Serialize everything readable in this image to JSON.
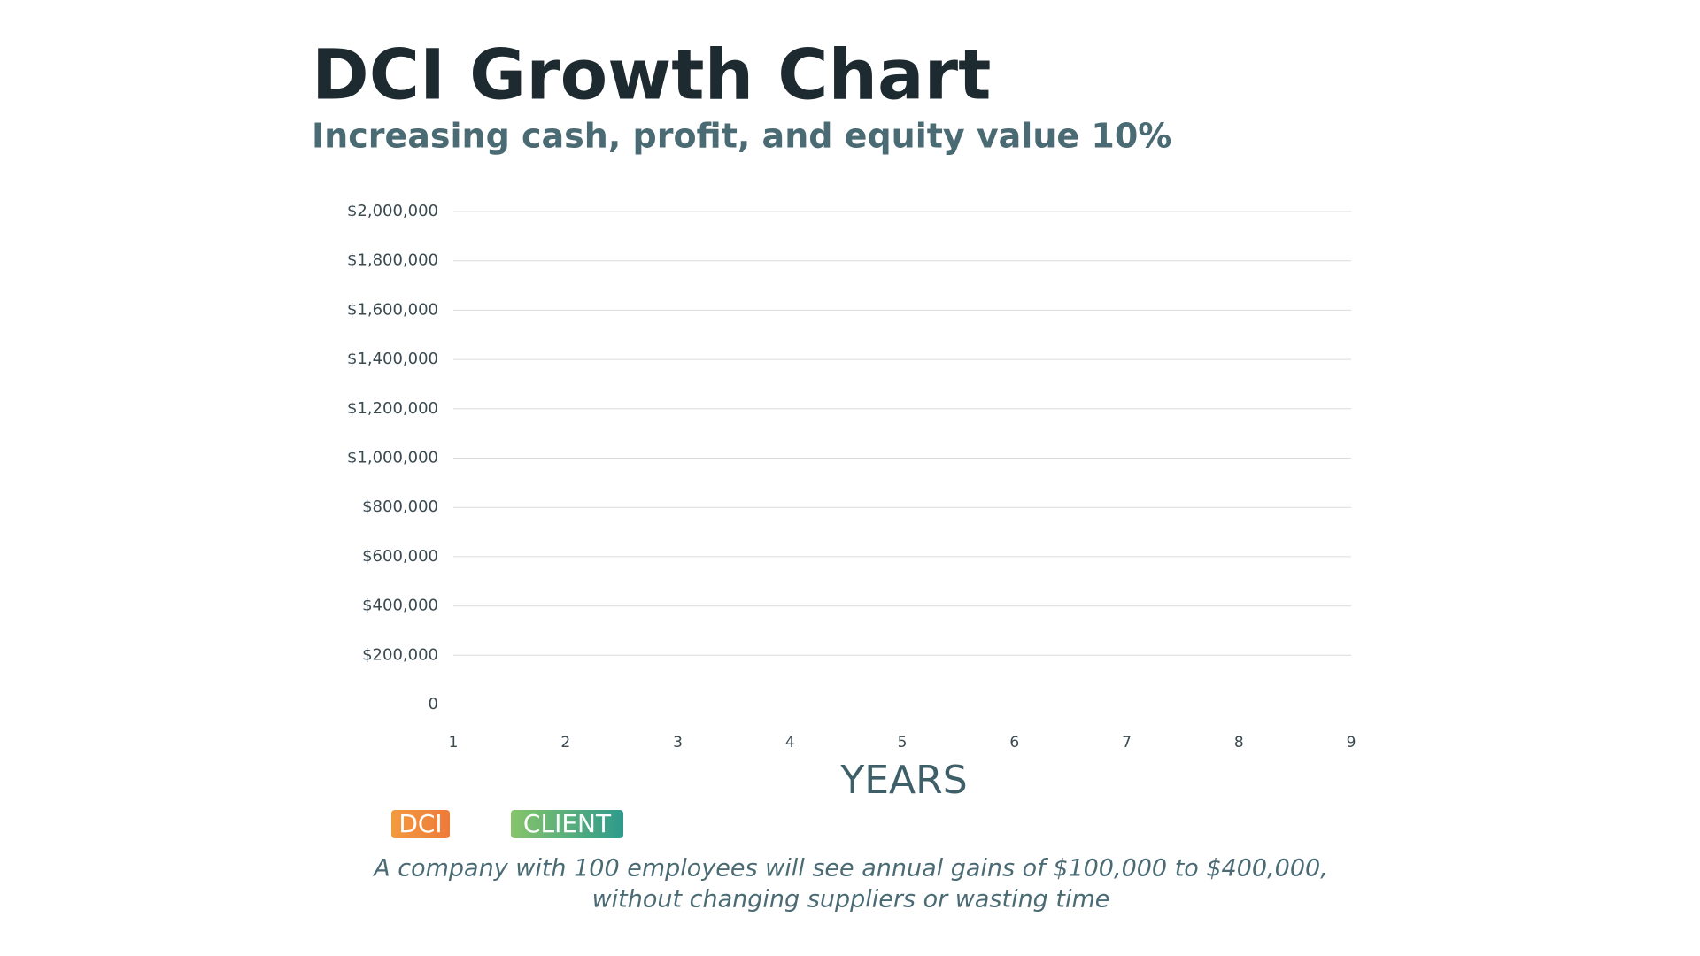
{
  "chart_data": {
    "type": "line",
    "title": "DCI Growth Chart",
    "subtitle": "Increasing cash, profit, and equity value 10%",
    "x_label": "YEARS",
    "note": [
      "A company with 100 employees will see annual gains of $100,000 to $400,000,",
      "without changing suppliers or wasting time"
    ],
    "x": [
      1,
      2,
      3,
      4,
      5,
      6,
      7,
      8,
      9
    ],
    "xlim": [
      1,
      9
    ],
    "xticks": [
      1,
      2,
      3,
      4,
      5,
      6,
      7,
      8,
      9
    ],
    "ylim": [
      0,
      2000000
    ],
    "yticks": [
      0,
      {
        "value": 200000,
        "label": "$200,000"
      },
      {
        "value": 400000,
        "label": "$400,000"
      },
      {
        "value": 600000,
        "label": "$600,000"
      },
      {
        "value": 800000,
        "label": "$800,000"
      },
      {
        "value": 1000000,
        "label": "$1,000,000"
      },
      {
        "value": 1200000,
        "label": "$1,200,000"
      },
      {
        "value": 1400000,
        "label": "$1,400,000"
      },
      {
        "value": 1600000,
        "label": "$1,600,000"
      },
      {
        "value": 1800000,
        "label": "$1,800,000"
      },
      {
        "value": 2000000,
        "label": "$2,000,000"
      }
    ],
    "grid": true,
    "series": [
      {
        "name": "DCI",
        "color": "#f08a3a",
        "values": [
          null,
          null,
          null,
          null,
          null,
          null,
          null,
          null,
          null
        ]
      },
      {
        "name": "CLIENT",
        "color": "#4eac78",
        "values": [
          null,
          null,
          null,
          null,
          null,
          null,
          null,
          null,
          null
        ]
      }
    ]
  }
}
